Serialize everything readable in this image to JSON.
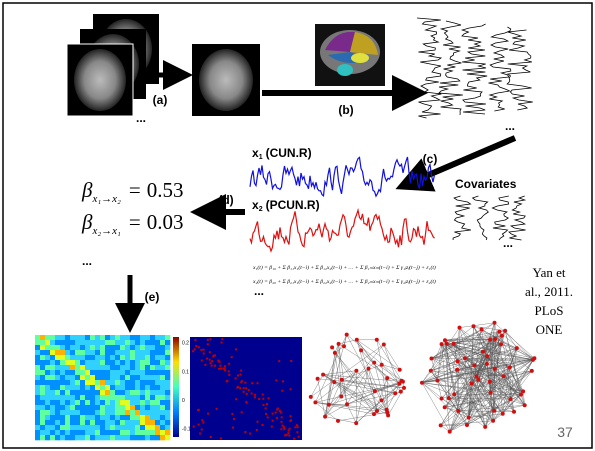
{
  "steps": [
    "(a)",
    "(b)",
    "(c)",
    "(d)",
    "(e)"
  ],
  "signals": [
    {
      "symbol": "x",
      "subscript": "1",
      "region": "(CUN.R)"
    },
    {
      "symbol": "x",
      "subscript": "2",
      "region": "(PCUN.R)"
    }
  ],
  "covariates": "Covariates",
  "coefficients": [
    {
      "symbol": "β",
      "subscript": "x₁→x₂",
      "relation": "=",
      "value": 0.53
    },
    {
      "symbol": "β",
      "subscript": "x₂→x₁",
      "relation": "=",
      "value": 0.03
    }
  ],
  "ellipses": [
    "...",
    "...",
    "...",
    "...",
    "..."
  ],
  "equations": [
    "x₁(t) = β₁₀ + Σ β₁₁x₁(t−i) + Σ β₁₂x₂(t−i) + … + Σ β₁ₘxₘ(t−i) + Σ γ₁ⱼzⱼ(t−j) + ε₁(t)",
    "x₂(t) = β₂₀ + Σ β₂₁x₁(t−i) + Σ β₂₂x₂(t−i) + … + Σ β₂ₘxₘ(t−i) + Σ γ₂ⱼzⱼ(t−j) + ε₂(t)"
  ],
  "citation": [
    "Yan et",
    "al., 2011.",
    "PLoS",
    "ONE"
  ],
  "colorbar_ticks": [
    0.2,
    0.1,
    0,
    -0.1
  ],
  "slide_number": 37
}
